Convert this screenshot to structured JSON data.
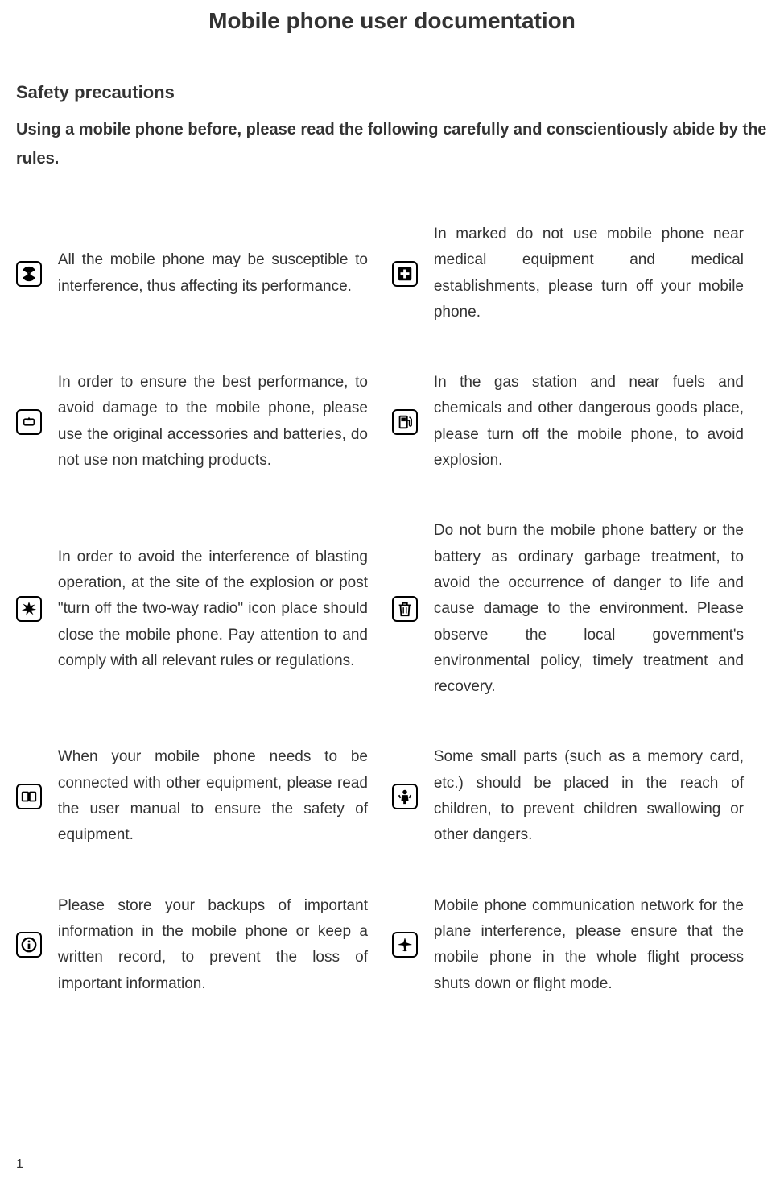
{
  "title": "Mobile phone user documentation",
  "section_heading": "Safety precautions",
  "intro": "Using a mobile phone before, please read the following carefully and conscientiously abide by the rules.",
  "page_number": "1",
  "precautions": [
    {
      "left": {
        "icon": "radiation",
        "text": "All the mobile phone may be susceptible to interference, thus affecting its performance."
      },
      "right": {
        "icon": "medical",
        "text": "In marked do not use mobile phone near medical equipment and medical establishments, please turn off your mobile phone."
      }
    },
    {
      "left": {
        "icon": "accessories",
        "text": "In order to ensure the best performance, to avoid damage to the mobile phone, please use the original accessories and batteries, do not use non matching products."
      },
      "right": {
        "icon": "fuel",
        "text": "In the gas station and near fuels and chemicals and other dangerous goods place, please turn off the mobile phone, to avoid explosion."
      }
    },
    {
      "left": {
        "icon": "explosion",
        "text": "In order to avoid the interference of blasting operation, at the site of the explosion or post \"turn off the two-way radio\" icon place should close the mobile phone. Pay attention to and comply with all relevant rules or regulations."
      },
      "right": {
        "icon": "trash",
        "text": "Do not burn the mobile phone battery or the battery as ordinary garbage treatment, to avoid the occurrence of danger to life and cause damage to the environment. Please observe the local government's environmental policy, timely treatment and recovery."
      }
    },
    {
      "left": {
        "icon": "connection",
        "text": "When your mobile phone needs to be connected with other equipment, please read the user manual to ensure the safety of equipment."
      },
      "right": {
        "icon": "children",
        "text": "Some small parts (such as a memory card, etc.) should be placed in the reach of children, to prevent children swallowing or other dangers."
      }
    },
    {
      "left": {
        "icon": "info",
        "text": "Please store your backups of important information in the mobile phone or keep a written record, to prevent the loss of important information."
      },
      "right": {
        "icon": "airplane",
        "text": "Mobile phone communication network for the plane interference, please ensure that the mobile phone in the whole flight process shuts down or flight mode."
      }
    }
  ],
  "colors": {
    "text": "#333333",
    "background": "#ffffff",
    "border": "#000000"
  },
  "typography": {
    "title_fontsize": 28,
    "heading_fontsize": 22,
    "intro_fontsize": 20,
    "body_fontsize": 19
  }
}
